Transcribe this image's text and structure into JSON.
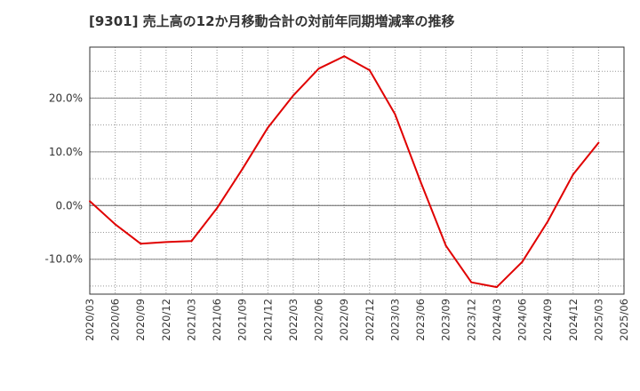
{
  "chart_data": {
    "type": "line",
    "title": "[9301]  売上高の12か月移動合計の対前年同期増減率の推移",
    "xlabel": "",
    "ylabel": "",
    "ylim": [
      -16.5,
      29.5
    ],
    "grid": true,
    "y_ticks": [
      {
        "value": 20,
        "label": "20.0%"
      },
      {
        "value": 10,
        "label": "10.0%"
      },
      {
        "value": 0,
        "label": "0.0%"
      },
      {
        "value": -10,
        "label": "-10.0%"
      }
    ],
    "categories": [
      "2020/03",
      "2020/06",
      "2020/09",
      "2020/12",
      "2021/03",
      "2021/06",
      "2021/09",
      "2021/12",
      "2022/03",
      "2022/06",
      "2022/09",
      "2022/12",
      "2023/03",
      "2023/06",
      "2023/09",
      "2023/12",
      "2024/03",
      "2024/06",
      "2024/09",
      "2024/12",
      "2025/03",
      "2025/06"
    ],
    "series": [
      {
        "name": "売上高の12か月移動合計の対前年同期増減率",
        "color": "#e00000",
        "values": [
          0.8,
          -3.5,
          -7.1,
          -6.8,
          -6.6,
          -0.5,
          6.8,
          14.5,
          20.5,
          25.5,
          27.8,
          25.2,
          17.0,
          4.5,
          -7.5,
          -14.3,
          -15.2,
          -10.5,
          -3.0,
          5.8,
          11.7,
          null
        ]
      }
    ]
  }
}
